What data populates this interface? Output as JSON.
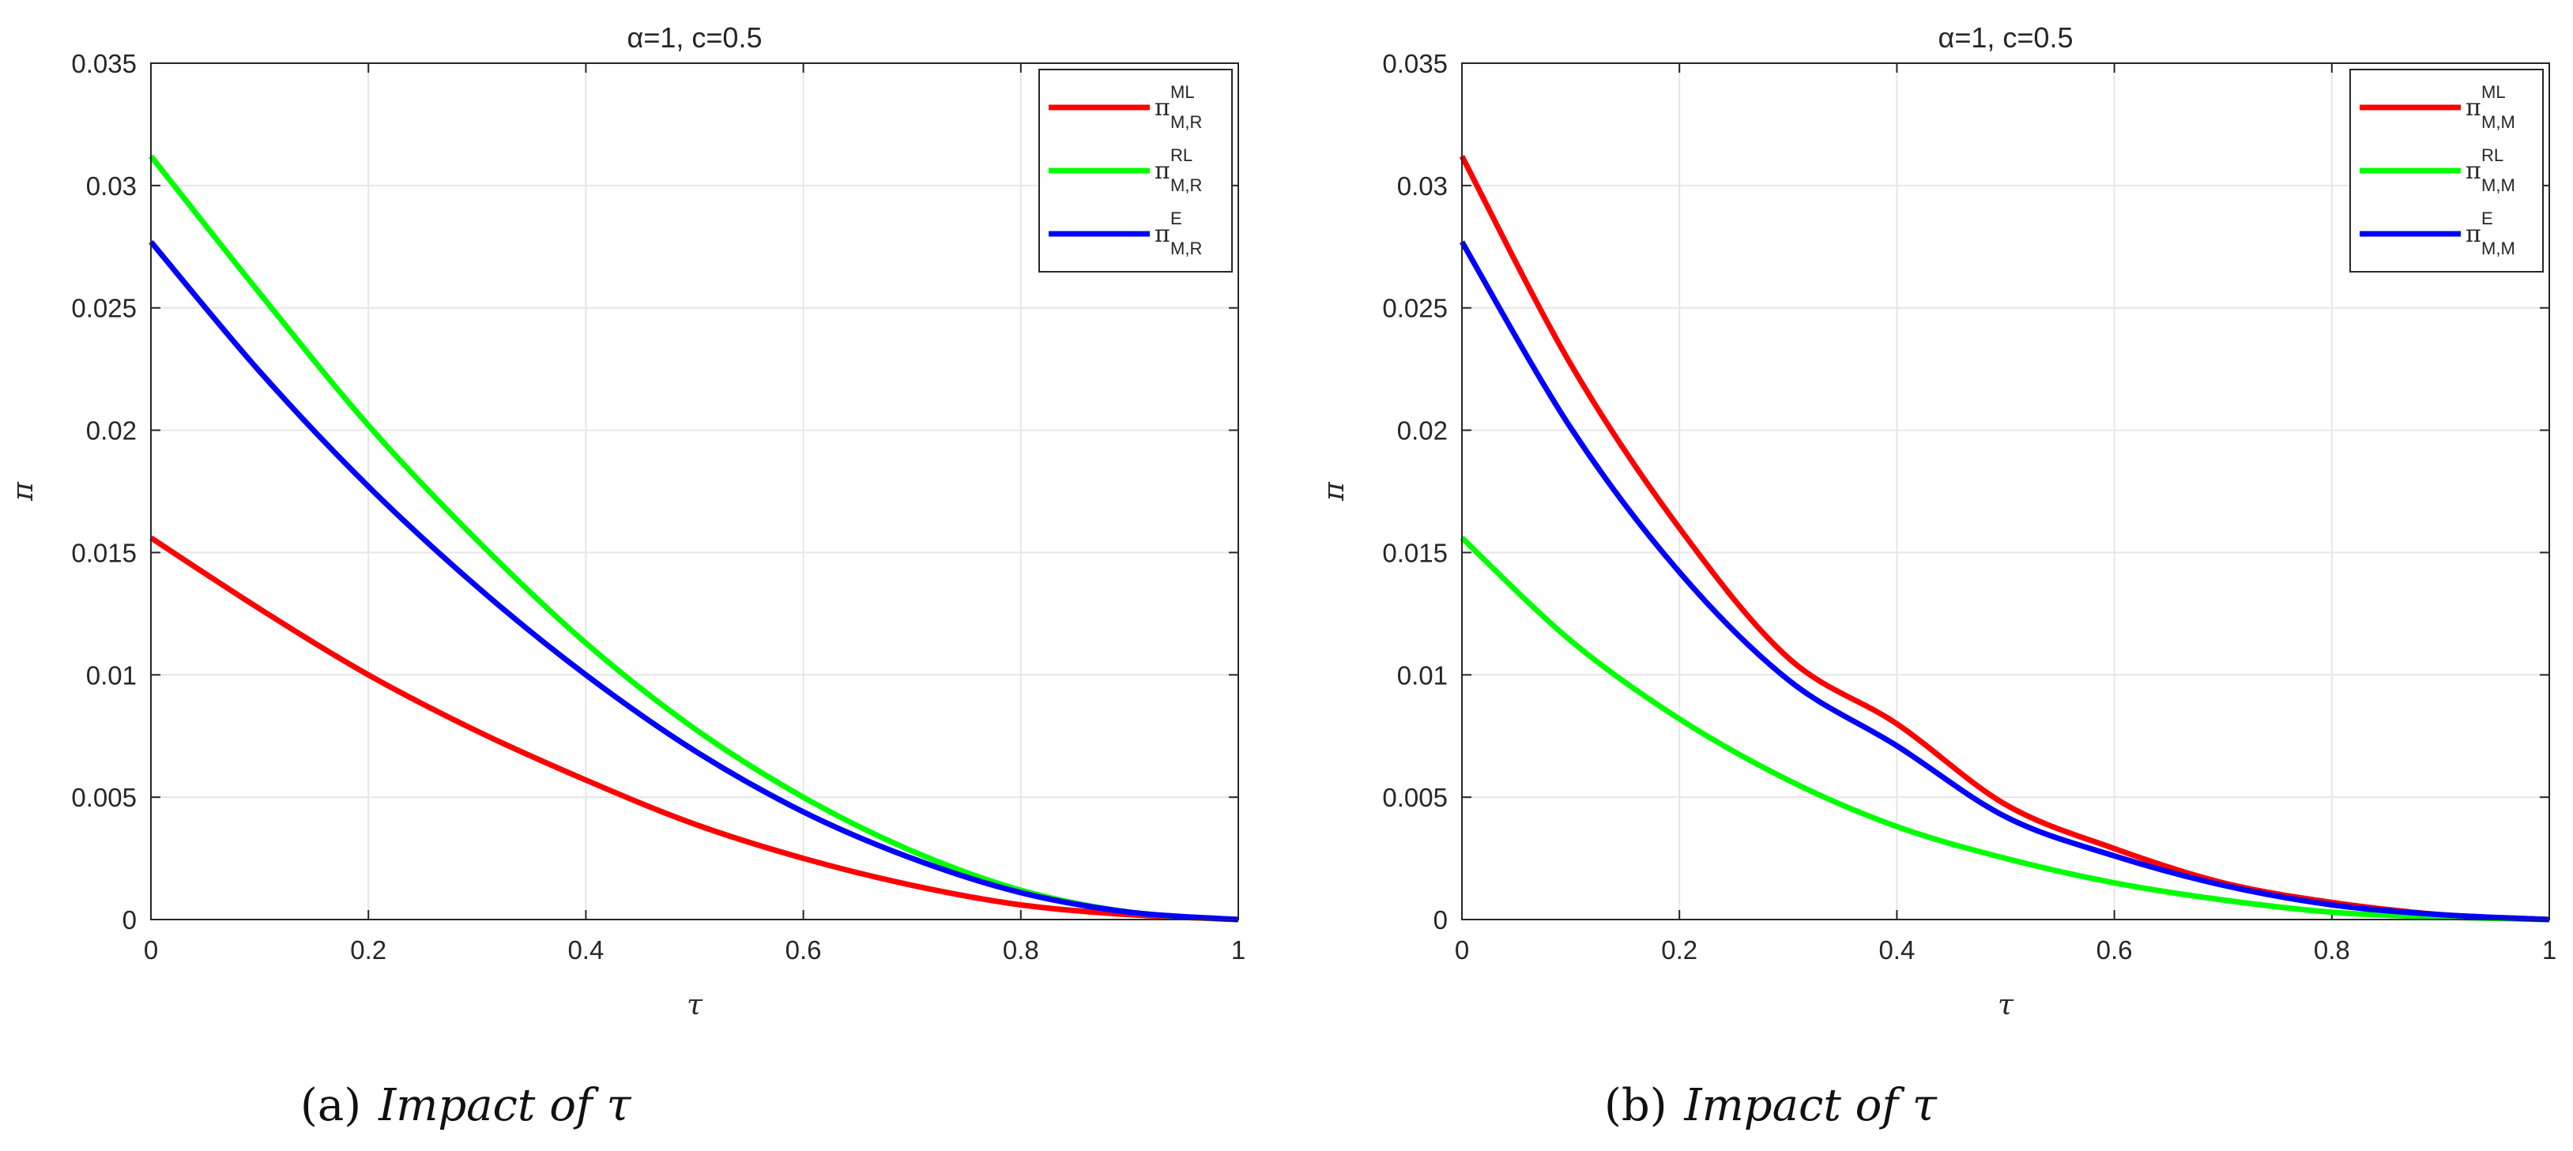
{
  "chart_data": [
    {
      "type": "line",
      "title": "α=1, c=0.5",
      "xlabel": "τ",
      "ylabel": "π",
      "xlim": [
        0,
        1
      ],
      "ylim": [
        0,
        0.035
      ],
      "xticks": [
        "0",
        "0.2",
        "0.4",
        "0.6",
        "0.8",
        "1"
      ],
      "yticks": [
        "0",
        "0.005",
        "0.01",
        "0.015",
        "0.02",
        "0.025",
        "0.03",
        "0.035"
      ],
      "grid": true,
      "legend_position": "top-right",
      "caption_label": "(a)",
      "caption_text": "Impact of τ",
      "x": [
        0,
        0.1,
        0.2,
        0.3,
        0.4,
        0.5,
        0.6,
        0.7,
        0.8,
        0.9,
        1.0
      ],
      "series": [
        {
          "name": "π",
          "sup": "ML",
          "sub": "M,R",
          "color": "#ff0000",
          "values": [
            0.0156,
            0.0127,
            0.01,
            0.0077,
            0.0057,
            0.0039,
            0.0025,
            0.0014,
            0.0006,
            0.0002,
            0.0
          ]
        },
        {
          "name": "π",
          "sup": "RL",
          "sub": "M,R",
          "color": "#00ff00",
          "values": [
            0.0312,
            0.0256,
            0.0202,
            0.0155,
            0.0113,
            0.0078,
            0.005,
            0.0028,
            0.0012,
            0.0003,
            0.0
          ]
        },
        {
          "name": "π",
          "sup": "E",
          "sub": "M,R",
          "color": "#0000ff",
          "values": [
            0.0277,
            0.0224,
            0.0177,
            0.0136,
            0.01,
            0.0069,
            0.0044,
            0.0025,
            0.0011,
            0.0003,
            0.0
          ]
        }
      ]
    },
    {
      "type": "line",
      "title": "α=1, c=0.5",
      "xlabel": "τ",
      "ylabel": "π",
      "xlim": [
        0,
        1
      ],
      "ylim": [
        0,
        0.035
      ],
      "xticks": [
        "0",
        "0.2",
        "0.4",
        "0.6",
        "0.8",
        "1"
      ],
      "yticks": [
        "0",
        "0.005",
        "0.01",
        "0.015",
        "0.02",
        "0.025",
        "0.03",
        "0.035"
      ],
      "grid": true,
      "legend_position": "top-right",
      "caption_label": "(b)",
      "caption_text": "Impact of τ",
      "x": [
        0,
        0.1,
        0.2,
        0.3,
        0.4,
        0.5,
        0.6,
        0.7,
        0.8,
        0.9,
        1.0
      ],
      "series": [
        {
          "name": "π",
          "sup": "ML",
          "sub": "M,M",
          "color": "#ff0000",
          "values": [
            0.0312,
            0.0227,
            0.016,
            0.0107,
            0.008,
            0.0047,
            0.0029,
            0.0015,
            0.0007,
            0.0002,
            0.0
          ]
        },
        {
          "name": "π",
          "sup": "RL",
          "sub": "M,M",
          "color": "#00ff00",
          "values": [
            0.0156,
            0.0114,
            0.0082,
            0.0057,
            0.0038,
            0.0025,
            0.0015,
            0.0008,
            0.0003,
            0.0001,
            0.0
          ]
        },
        {
          "name": "π",
          "sup": "E",
          "sub": "M,M",
          "color": "#0000ff",
          "values": [
            0.0277,
            0.0201,
            0.0142,
            0.0098,
            0.0071,
            0.0042,
            0.0026,
            0.0014,
            0.0006,
            0.0002,
            0.0
          ]
        }
      ]
    }
  ]
}
